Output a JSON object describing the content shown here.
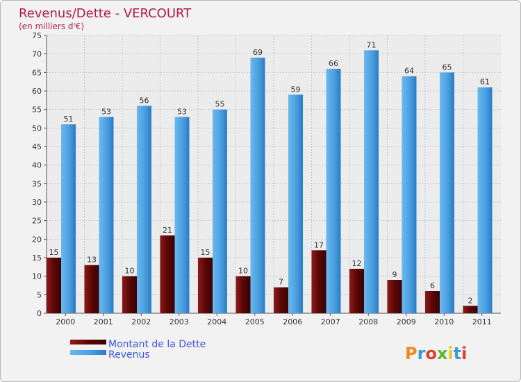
{
  "chart_data": {
    "type": "bar",
    "title": "Revenus/Dette - VERCOURT",
    "subtitle": "(en milliers d'€)",
    "categories": [
      "2000",
      "2001",
      "2002",
      "2003",
      "2004",
      "2005",
      "2006",
      "2007",
      "2008",
      "2009",
      "2010",
      "2011"
    ],
    "series": [
      {
        "name": "Montant de la Dette",
        "color": "#6b0a0a",
        "values": [
          15,
          13,
          10,
          21,
          15,
          10,
          7,
          17,
          12,
          9,
          6,
          2
        ]
      },
      {
        "name": "Revenus",
        "color": "#4a9fe0",
        "values": [
          51,
          53,
          56,
          53,
          55,
          69,
          59,
          66,
          71,
          64,
          65,
          61
        ]
      }
    ],
    "ylim": [
      0,
      75
    ],
    "yticks": [
      0,
      5,
      10,
      15,
      20,
      25,
      30,
      35,
      40,
      45,
      50,
      55,
      60,
      65,
      70,
      75
    ],
    "grid": true,
    "legend": "bottom-left"
  },
  "logo": {
    "text": "Proxiti"
  }
}
